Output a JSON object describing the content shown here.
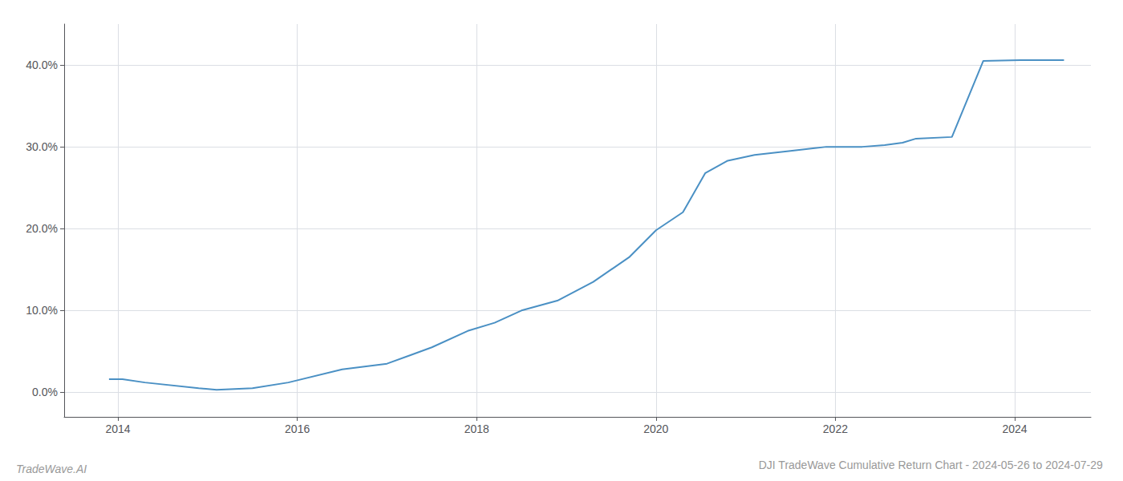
{
  "chart_data": {
    "type": "line",
    "title": "DJI TradeWave Cumulative Return Chart - 2024-05-26 to 2024-07-29",
    "annotations": [
      "TradeWave.AI"
    ],
    "x": [
      2013.9,
      2014.05,
      2014.3,
      2014.9,
      2015.1,
      2015.5,
      2015.9,
      2016.5,
      2017.0,
      2017.5,
      2017.9,
      2018.2,
      2018.5,
      2018.9,
      2019.3,
      2019.7,
      2020.0,
      2020.3,
      2020.55,
      2020.8,
      2021.1,
      2021.5,
      2021.9,
      2022.3,
      2022.55,
      2022.75,
      2022.9,
      2023.3,
      2023.65,
      2024.1,
      2024.55
    ],
    "values": [
      1.6,
      1.6,
      1.2,
      0.5,
      0.3,
      0.5,
      1.2,
      2.8,
      3.5,
      5.5,
      7.5,
      8.5,
      10.0,
      11.2,
      13.5,
      16.5,
      19.8,
      22.0,
      26.8,
      28.3,
      29.0,
      29.5,
      30.0,
      30.0,
      30.2,
      30.5,
      31.0,
      31.2,
      40.5,
      40.6,
      40.6
    ],
    "color": "#4a90c4",
    "xlim": [
      2013.4,
      2024.85
    ],
    "xticks": [
      2014,
      2016,
      2018,
      2020,
      2022,
      2024
    ],
    "ylim": [
      -3,
      45
    ],
    "yticks": [
      {
        "value": 0,
        "label": "0.0%"
      },
      {
        "value": 10,
        "label": "10.0%"
      },
      {
        "value": 20,
        "label": "20.0%"
      },
      {
        "value": 30,
        "label": "30.0%"
      },
      {
        "value": 40,
        "label": "40.0%"
      }
    ],
    "grid": true
  }
}
